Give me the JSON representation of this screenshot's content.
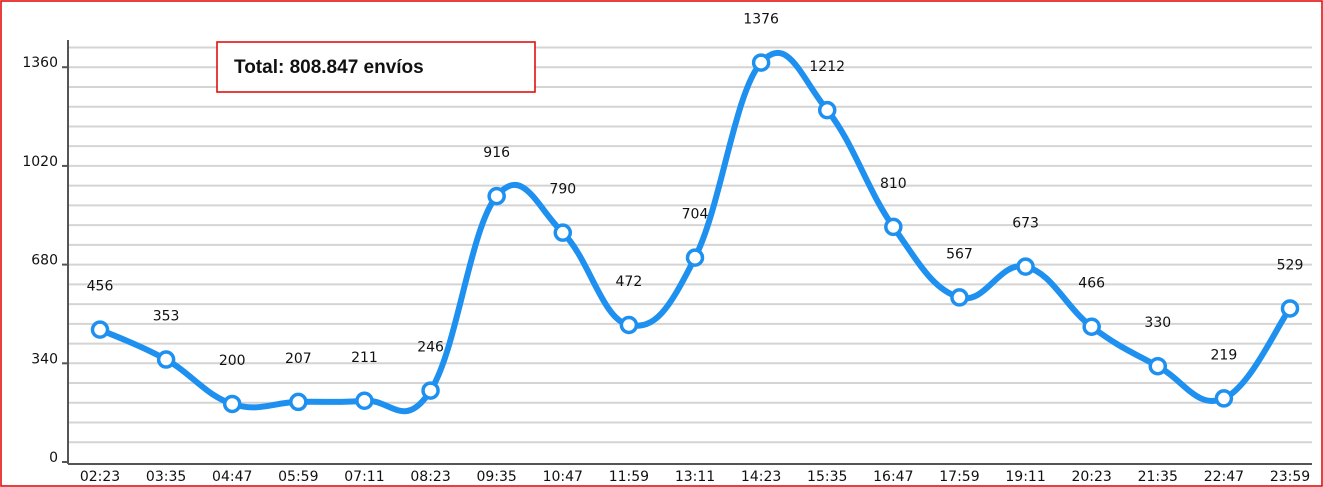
{
  "chart_data": {
    "type": "line",
    "annotation": "Total: 808.847 envíos",
    "categories": [
      "02:23",
      "03:35",
      "04:47",
      "05:59",
      "07:11",
      "08:23",
      "09:35",
      "10:47",
      "11:59",
      "13:11",
      "14:23",
      "15:35",
      "16:47",
      "17:59",
      "19:11",
      "20:23",
      "21:35",
      "22:47",
      "23:59"
    ],
    "series": [
      {
        "name": null,
        "color": "#1e90f0",
        "values": [
          456,
          353,
          200,
          207,
          211,
          246,
          916,
          790,
          472,
          704,
          1376,
          1212,
          810,
          567,
          673,
          466,
          330,
          219,
          529
        ]
      }
    ],
    "ylim": [
      0,
      1440
    ],
    "yticks": [
      0,
      340,
      680,
      1020,
      1360
    ],
    "grid": true
  }
}
